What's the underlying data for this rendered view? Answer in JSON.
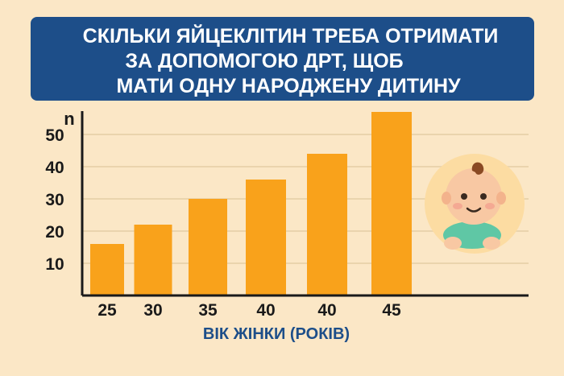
{
  "title": {
    "line1": "СКІЛЬКИ ЯЙЦЕКЛІТИН ТРЕБА ОТРИМАТИ",
    "line2": "ЗА ДОПОМОГОЮ ДРТ, ЩОБ",
    "line3": "МАТИ ОДНУ НАРОДЖЕНУ ДИТИНУ"
  },
  "colors": {
    "banner": "#1d4e89",
    "bar": "#f9a21b",
    "background": "#fbe7c6"
  },
  "illustration": "baby-icon",
  "chart_data": {
    "type": "bar",
    "categories": [
      "25",
      "30",
      "35",
      "40",
      "40",
      "45"
    ],
    "values": [
      16,
      22,
      30,
      36,
      44,
      57
    ],
    "ylabel": "n",
    "xlabel": "ВІК ЖІНКИ (РОКІВ)",
    "yticks": [
      10,
      20,
      30,
      40,
      50
    ],
    "ylim": [
      0,
      58
    ],
    "grid": true
  }
}
